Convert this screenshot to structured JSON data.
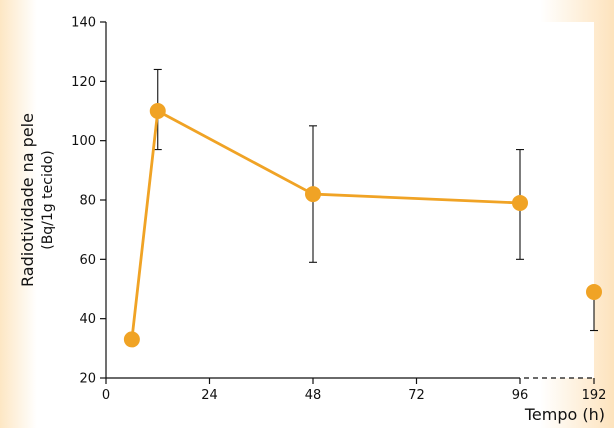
{
  "chart_data": {
    "type": "line",
    "title": "",
    "xlabel": "Tempo (h)",
    "ylabel": "Radiotividade na pele",
    "ylabel_sub": "(Bq/1g tecido)",
    "x_ticks": [
      "0",
      "24",
      "48",
      "72",
      "96",
      "192"
    ],
    "y_ticks": [
      20,
      40,
      60,
      80,
      100,
      120,
      140
    ],
    "ylim": [
      20,
      140
    ],
    "grid": false,
    "x_axis_break": "dashed line between 96 and 192",
    "series": [
      {
        "color": "#f0a325",
        "points": [
          {
            "x": 6,
            "y": 33,
            "err_low": 31,
            "err_high": 35,
            "connected": true
          },
          {
            "x": 12,
            "y": 110,
            "err_low": 97,
            "err_high": 124,
            "connected": true
          },
          {
            "x": 48,
            "y": 82,
            "err_low": 59,
            "err_high": 105,
            "connected": true
          },
          {
            "x": 96,
            "y": 79,
            "err_low": 60,
            "err_high": 97,
            "connected": true
          },
          {
            "x": 192,
            "y": 49,
            "err_low": 36,
            "err_high": 49,
            "connected": false
          }
        ]
      }
    ]
  }
}
